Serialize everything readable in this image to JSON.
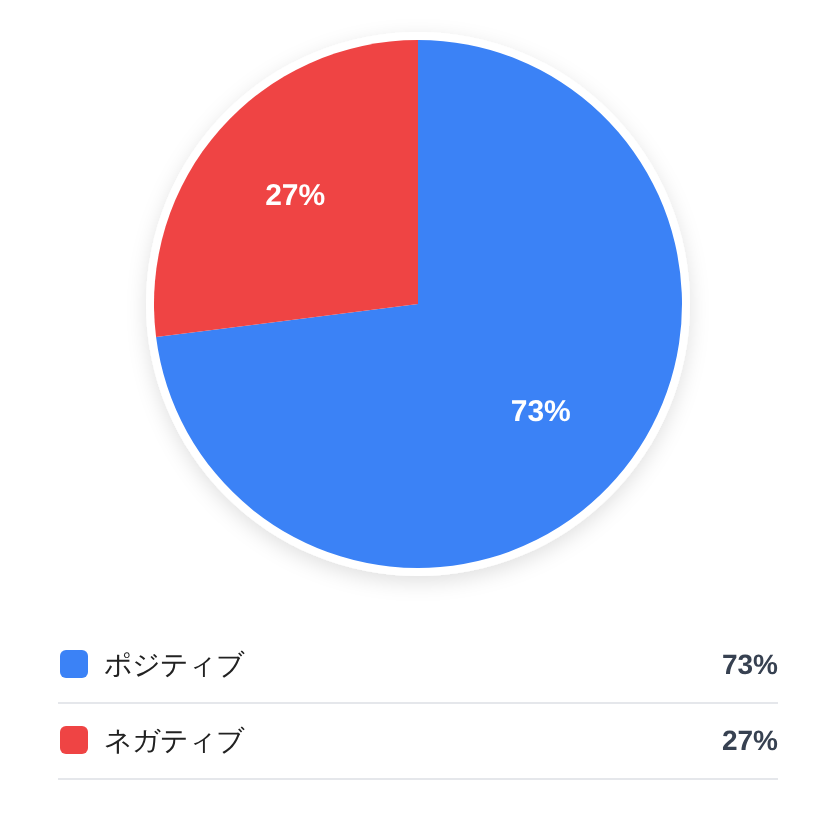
{
  "chart_data": {
    "type": "pie",
    "categories": [
      "ポジティブ",
      "ネガティブ"
    ],
    "values": [
      73,
      27
    ],
    "colors": [
      "#3b82f6",
      "#ef4444"
    ],
    "value_labels": [
      "73%",
      "27%"
    ],
    "legend": "bottom"
  }
}
